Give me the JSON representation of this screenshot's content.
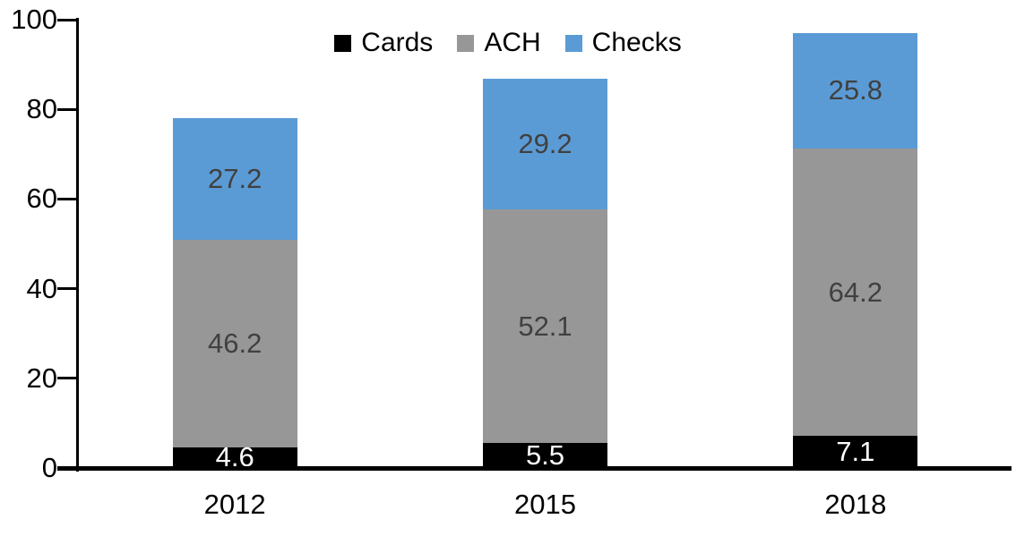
{
  "chart_data": {
    "type": "bar",
    "stacked": true,
    "title": "",
    "xlabel": "",
    "ylabel": "",
    "categories": [
      "2012",
      "2015",
      "2018"
    ],
    "series": [
      {
        "name": "Cards",
        "color": "#000000",
        "label_color": "#ffffff",
        "values": [
          4.6,
          5.5,
          7.1
        ]
      },
      {
        "name": "ACH",
        "color": "#979797",
        "label_color": "#404040",
        "values": [
          46.2,
          52.1,
          64.2
        ]
      },
      {
        "name": "Checks",
        "color": "#5b9bd5",
        "label_color": "#404040",
        "values": [
          27.2,
          29.2,
          25.8
        ]
      }
    ],
    "totals": [
      78.0,
      86.8,
      97.1
    ],
    "ylim": [
      0,
      100
    ],
    "yticks": [
      0,
      20,
      40,
      60,
      80,
      100
    ],
    "legend_position": "top-center",
    "grid": false,
    "data_labels": true,
    "axis_color": "#000000",
    "background_color": "#ffffff"
  }
}
